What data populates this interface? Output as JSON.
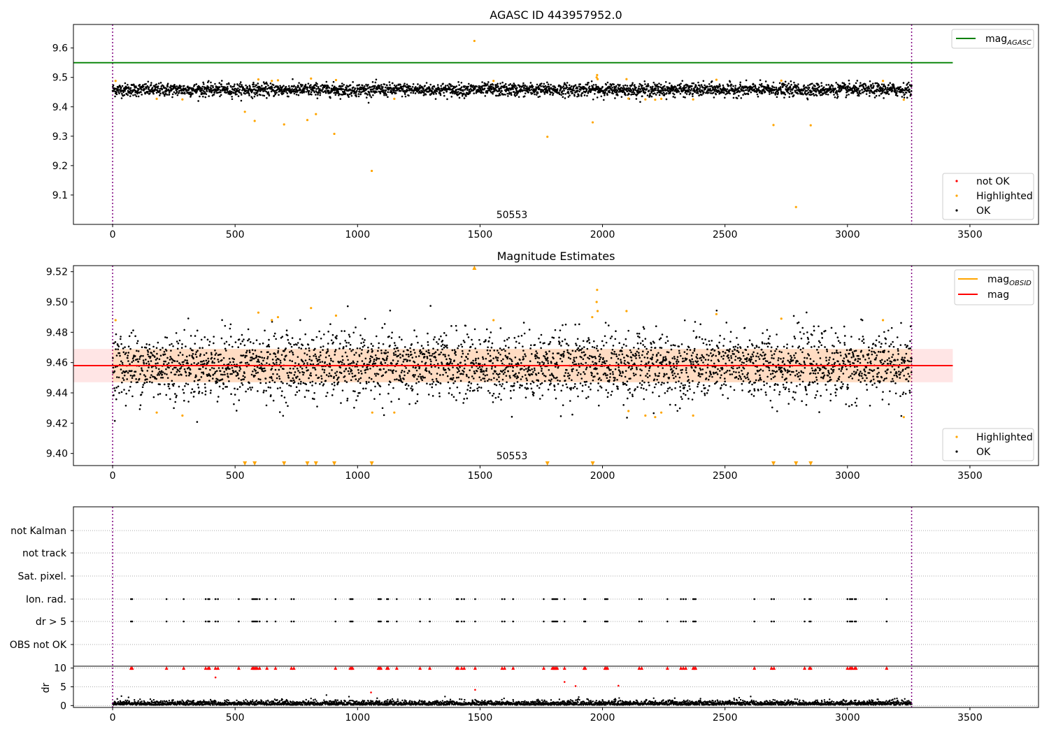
{
  "chart_data": [
    {
      "type": "scatter",
      "title": "AGASC ID 443957952.0",
      "xlim": [
        -160,
        3780
      ],
      "ylim": [
        9.0,
        9.68
      ],
      "xticks": [
        0,
        500,
        1000,
        1500,
        2000,
        2500,
        3000,
        3500
      ],
      "yticks": [
        9.1,
        9.2,
        9.3,
        9.4,
        9.5,
        9.6
      ],
      "obsid_label": "50553",
      "obs_boundaries": [
        0,
        3262
      ],
      "reference_lines": [
        {
          "name": "mag_AGASC",
          "name_base": "mag",
          "name_sub": "AGASC",
          "value": 9.55,
          "x_range": [
            -160,
            3430
          ],
          "color": "#008000"
        }
      ],
      "series": [
        {
          "name": "not OK",
          "color": "#ff0000",
          "points": []
        },
        {
          "name": "Highlighted",
          "color": "#ffa500",
          "points": [
            [
              12,
              9.488
            ],
            [
              180,
              9.427
            ],
            [
              285,
              9.425
            ],
            [
              540,
              9.383
            ],
            [
              580,
              9.352
            ],
            [
              595,
              9.493
            ],
            [
              650,
              9.488
            ],
            [
              675,
              9.49
            ],
            [
              700,
              9.34
            ],
            [
              795,
              9.355
            ],
            [
              810,
              9.496
            ],
            [
              830,
              9.375
            ],
            [
              905,
              9.308
            ],
            [
              912,
              9.491
            ],
            [
              1058,
              9.182
            ],
            [
              1150,
              9.427
            ],
            [
              1477,
              9.624
            ],
            [
              1555,
              9.488
            ],
            [
              1775,
              9.298
            ],
            [
              1960,
              9.347
            ],
            [
              1976,
              9.5
            ],
            [
              1978,
              9.508
            ],
            [
              1980,
              9.494
            ],
            [
              2098,
              9.494
            ],
            [
              2106,
              9.428
            ],
            [
              2175,
              9.425
            ],
            [
              2215,
              9.424
            ],
            [
              2240,
              9.427
            ],
            [
              2370,
              9.425
            ],
            [
              2465,
              9.492
            ],
            [
              2698,
              9.338
            ],
            [
              2730,
              9.489
            ],
            [
              2790,
              9.059
            ],
            [
              2850,
              9.337
            ],
            [
              3145,
              9.488
            ],
            [
              3230,
              9.424
            ]
          ]
        },
        {
          "name": "OK",
          "color": "#000000",
          "n_points": 3263,
          "x_range": [
            0,
            3262
          ],
          "center": 9.458,
          "spread": 0.011
        }
      ],
      "legends": [
        {
          "loc": "upper right",
          "entries": [
            {
              "label_base": "mag",
              "label_sub": "AGASC",
              "kind": "line",
              "color": "#008000"
            }
          ]
        },
        {
          "loc": "lower right",
          "entries": [
            {
              "label": "not OK",
              "kind": "dot",
              "color": "#ff0000"
            },
            {
              "label": "Highlighted",
              "kind": "dot",
              "color": "#ffa500"
            },
            {
              "label": "OK",
              "kind": "dot",
              "color": "#000000"
            }
          ]
        }
      ]
    },
    {
      "type": "scatter",
      "title": "Magnitude Estimates",
      "xlim": [
        -160,
        3780
      ],
      "ylim": [
        9.392,
        9.524
      ],
      "xticks": [
        0,
        500,
        1000,
        1500,
        2000,
        2500,
        3000,
        3500
      ],
      "yticks": [
        9.4,
        9.42,
        9.44,
        9.46,
        9.48,
        9.5,
        9.52
      ],
      "obsid_label": "50553",
      "obs_boundaries": [
        0,
        3262
      ],
      "mag": 9.458,
      "mag_band": [
        9.447,
        9.469
      ],
      "mag_obsid": 9.458,
      "mag_obsid_band": [
        9.447,
        9.469
      ],
      "mag_line_x_range": [
        -160,
        3430
      ],
      "mag_obsid_x_range": [
        0,
        3262
      ],
      "clipped_markers": {
        "top": [
          1477
        ],
        "bottom": [
          540,
          580,
          700,
          795,
          830,
          905,
          1058,
          1775,
          1960,
          2698,
          2790,
          2850
        ]
      },
      "series": [
        {
          "name": "Highlighted",
          "color": "#ffa500",
          "points": [
            [
              12,
              9.488
            ],
            [
              180,
              9.427
            ],
            [
              285,
              9.425
            ],
            [
              595,
              9.493
            ],
            [
              650,
              9.488
            ],
            [
              675,
              9.49
            ],
            [
              810,
              9.496
            ],
            [
              912,
              9.491
            ],
            [
              1150,
              9.427
            ],
            [
              1555,
              9.488
            ],
            [
              1976,
              9.5
            ],
            [
              1978,
              9.508
            ],
            [
              1980,
              9.494
            ],
            [
              1958,
              9.49
            ],
            [
              2098,
              9.494
            ],
            [
              2106,
              9.428
            ],
            [
              2175,
              9.425
            ],
            [
              2215,
              9.424
            ],
            [
              2240,
              9.427
            ],
            [
              2370,
              9.425
            ],
            [
              2465,
              9.492
            ],
            [
              2730,
              9.489
            ],
            [
              3145,
              9.488
            ],
            [
              3230,
              9.424
            ],
            [
              1060,
              9.427
            ]
          ]
        },
        {
          "name": "OK",
          "color": "#000000",
          "n_points": 3263,
          "x_range": [
            0,
            3262
          ],
          "center": 9.458,
          "spread": 0.011
        }
      ],
      "legends": [
        {
          "loc": "upper right",
          "entries": [
            {
              "label_base": "mag",
              "label_sub": "OBSID",
              "kind": "line",
              "color": "#ffa500"
            },
            {
              "label": "mag",
              "kind": "line",
              "color": "#ff0000"
            }
          ]
        },
        {
          "loc": "lower right",
          "entries": [
            {
              "label": "Highlighted",
              "kind": "dot",
              "color": "#ffa500"
            },
            {
              "label": "OK",
              "kind": "dot",
              "color": "#000000"
            }
          ]
        }
      ]
    },
    {
      "type": "scatter",
      "title": "",
      "xlim": [
        -160,
        3780
      ],
      "xticks": [
        0,
        500,
        1000,
        1500,
        2000,
        2500,
        3000,
        3500
      ],
      "obs_boundaries": [
        0,
        3262
      ],
      "flag_rows": [
        "not Kalman",
        "not track",
        "Sat. pixel.",
        "Ion. rad.",
        "dr > 5",
        "OBS not OK"
      ],
      "flag_events": {
        "Ion. rad.": [
          75,
          80,
          220,
          290,
          380,
          390,
          395,
          420,
          430,
          515,
          570,
          575,
          580,
          585,
          590,
          600,
          630,
          665,
          730,
          740,
          910,
          970,
          975,
          980,
          1085,
          1090,
          1095,
          1120,
          1125,
          1160,
          1255,
          1295,
          1405,
          1410,
          1425,
          1435,
          1480,
          1590,
          1600,
          1635,
          1760,
          1795,
          1800,
          1805,
          1810,
          1815,
          1845,
          1925,
          1930,
          2010,
          2015,
          2020,
          2150,
          2160,
          2265,
          2320,
          2330,
          2340,
          2370,
          2375,
          2380,
          2620,
          2690,
          2700,
          2825,
          2845,
          2850,
          3000,
          3010,
          3015,
          3020,
          3030,
          3035,
          3160
        ],
        "dr > 5": [
          75,
          80,
          220,
          290,
          380,
          390,
          395,
          420,
          430,
          515,
          570,
          575,
          580,
          585,
          590,
          600,
          630,
          665,
          730,
          740,
          910,
          970,
          975,
          980,
          1085,
          1090,
          1095,
          1120,
          1125,
          1160,
          1255,
          1295,
          1405,
          1410,
          1425,
          1435,
          1480,
          1590,
          1600,
          1635,
          1760,
          1795,
          1800,
          1805,
          1810,
          1815,
          1845,
          1925,
          1930,
          2010,
          2015,
          2020,
          2150,
          2160,
          2265,
          2320,
          2330,
          2340,
          2370,
          2375,
          2380,
          2620,
          2690,
          2700,
          2825,
          2845,
          2850,
          3000,
          3010,
          3015,
          3020,
          3030,
          3035,
          3160
        ]
      },
      "dr": {
        "ylabel": "dr",
        "ylim": [
          -0.5,
          10.5
        ],
        "yticks": [
          0,
          5,
          10
        ],
        "clip_value": 10,
        "ok_range": [
          0,
          2.5
        ],
        "red_points": [
          [
            420,
            7.5
          ],
          [
            1055,
            3.5
          ],
          [
            1480,
            4.2
          ],
          [
            1845,
            6.3
          ],
          [
            1890,
            5.2
          ],
          [
            2065,
            5.3
          ]
        ]
      }
    }
  ]
}
